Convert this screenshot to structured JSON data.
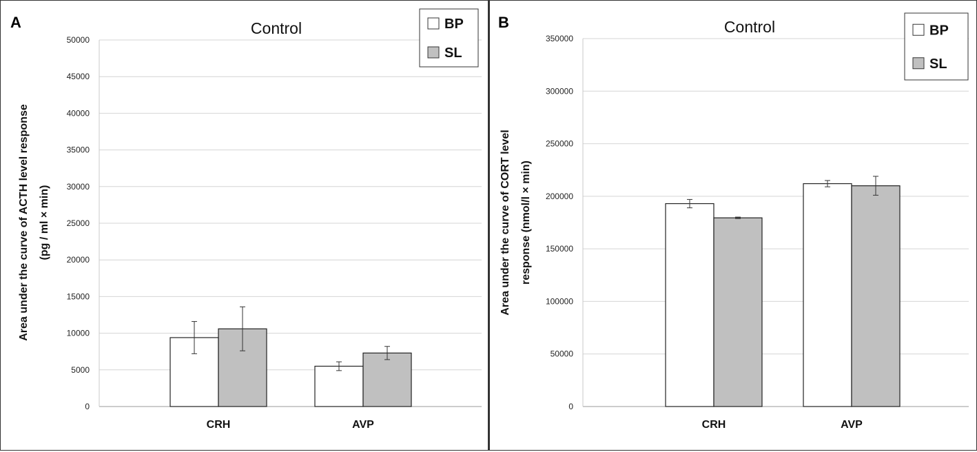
{
  "chart_data": [
    {
      "panel": "A",
      "type": "bar",
      "title": "Control",
      "ylabel_line1": "Area under the curve of ACTH level response",
      "ylabel_line2": "(pg / ml × min)",
      "ylim": [
        0,
        50000
      ],
      "yticks": [
        "0",
        "5000",
        "10000",
        "15000",
        "20000",
        "25000",
        "30000",
        "35000",
        "40000",
        "45000",
        "50000"
      ],
      "categories": [
        "CRH",
        "AVP"
      ],
      "series": [
        {
          "name": "BP",
          "color": "#ffffff",
          "values": [
            9400,
            5500
          ],
          "errors": [
            2200,
            600
          ]
        },
        {
          "name": "SL",
          "color": "#c0c0c0",
          "values": [
            10600,
            7300
          ],
          "errors": [
            3000,
            900
          ]
        }
      ],
      "legend": "top-right"
    },
    {
      "panel": "B",
      "type": "bar",
      "title": "Control",
      "ylabel_line1": "Area under the curve of CORT level",
      "ylabel_line2": "response (nmol/l × min)",
      "ylim": [
        0,
        350000
      ],
      "yticks": [
        "0",
        "50000",
        "100000",
        "150000",
        "200000",
        "250000",
        "300000",
        "350000"
      ],
      "categories": [
        "CRH",
        "AVP"
      ],
      "series": [
        {
          "name": "BP",
          "color": "#ffffff",
          "values": [
            193000,
            212000
          ],
          "errors": [
            4000,
            3000
          ]
        },
        {
          "name": "SL",
          "color": "#c0c0c0",
          "values": [
            179500,
            210000
          ],
          "errors": [
            700,
            9000
          ]
        }
      ],
      "legend": "top-right"
    }
  ]
}
